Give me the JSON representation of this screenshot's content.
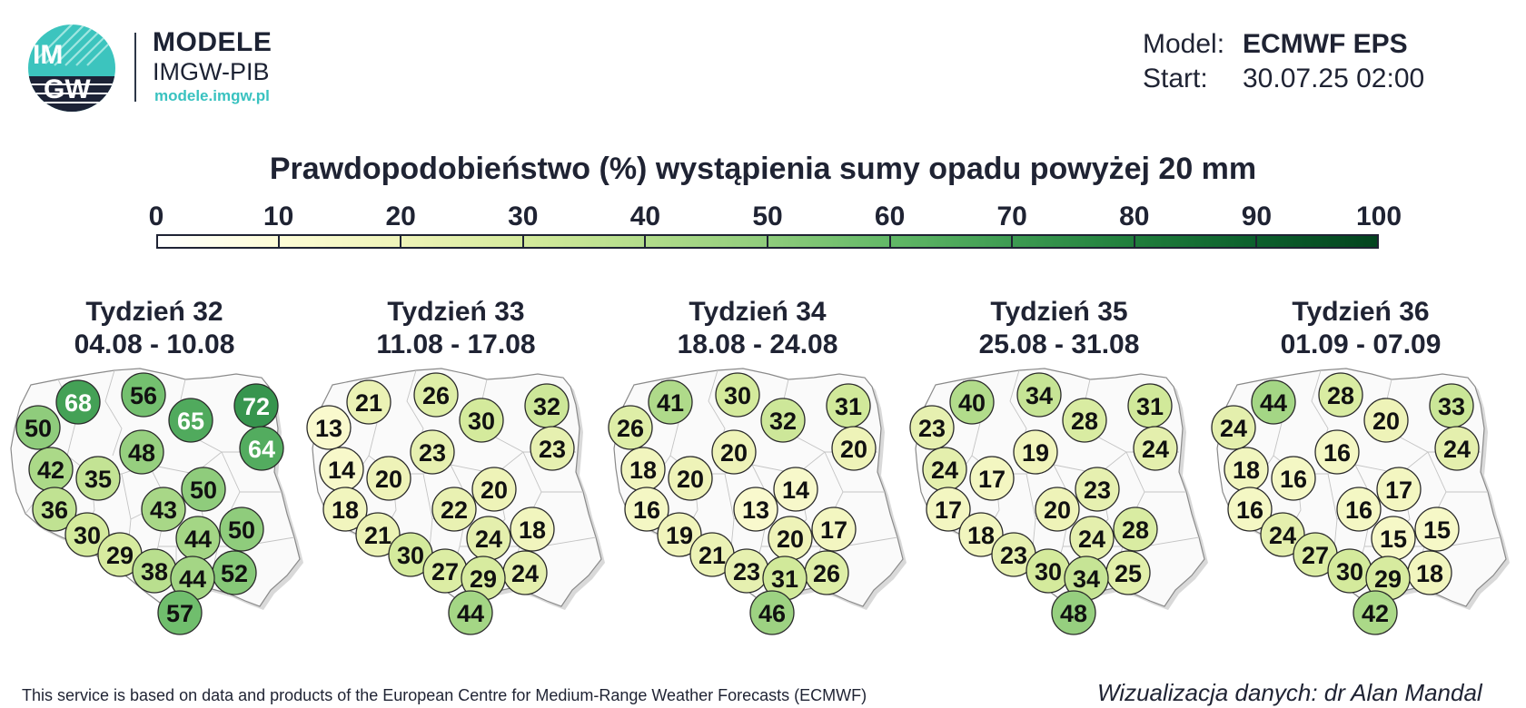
{
  "header": {
    "logo_text_top": "IM",
    "logo_text_bottom": "GW",
    "brand": "MODELE",
    "org": "IMGW-PIB",
    "url": "modele.imgw.pl"
  },
  "model_info": {
    "model_label": "Model:",
    "model_value": "ECMWF EPS",
    "start_label": "Start:",
    "start_value": "30.07.25 02:00"
  },
  "title": "Prawdopodobieństwo (%) wystąpienia sumy opadu powyżej 20 mm",
  "colorbar": {
    "ticks": [
      "0",
      "10",
      "20",
      "30",
      "40",
      "50",
      "60",
      "70",
      "80",
      "90",
      "100"
    ],
    "colors": [
      "#ffffff",
      "#fdfcd6",
      "#eef3b8",
      "#d4ea9c",
      "#b2dc8b",
      "#8fcc7c",
      "#62b867",
      "#3d9b52",
      "#1f7e3c",
      "#0c602d",
      "#03441f"
    ]
  },
  "weeks": [
    {
      "title": "Tydzień 32",
      "dates": "04.08 - 10.08",
      "stations": [
        {
          "v": 68,
          "x": 72,
          "y": 21
        },
        {
          "v": 56,
          "x": 144,
          "y": 13
        },
        {
          "v": 72,
          "x": 268,
          "y": 25
        },
        {
          "v": 50,
          "x": 28,
          "y": 49
        },
        {
          "v": 65,
          "x": 196,
          "y": 41
        },
        {
          "v": 64,
          "x": 274,
          "y": 72
        },
        {
          "v": 48,
          "x": 142,
          "y": 76
        },
        {
          "v": 42,
          "x": 42,
          "y": 95
        },
        {
          "v": 35,
          "x": 94,
          "y": 105
        },
        {
          "v": 50,
          "x": 210,
          "y": 117
        },
        {
          "v": 36,
          "x": 46,
          "y": 139
        },
        {
          "v": 43,
          "x": 166,
          "y": 139
        },
        {
          "v": 30,
          "x": 82,
          "y": 167
        },
        {
          "v": 50,
          "x": 252,
          "y": 161
        },
        {
          "v": 44,
          "x": 204,
          "y": 171
        },
        {
          "v": 29,
          "x": 118,
          "y": 189
        },
        {
          "v": 38,
          "x": 156,
          "y": 207
        },
        {
          "v": 52,
          "x": 244,
          "y": 209
        },
        {
          "v": 44,
          "x": 198,
          "y": 215
        },
        {
          "v": 57,
          "x": 184,
          "y": 253
        }
      ]
    },
    {
      "title": "Tydzień 33",
      "dates": "11.08 - 17.08",
      "stations": [
        {
          "v": 21,
          "x": 60,
          "y": 21
        },
        {
          "v": 26,
          "x": 134,
          "y": 13
        },
        {
          "v": 32,
          "x": 256,
          "y": 25
        },
        {
          "v": 13,
          "x": 16,
          "y": 49
        },
        {
          "v": 30,
          "x": 184,
          "y": 41
        },
        {
          "v": 23,
          "x": 262,
          "y": 72
        },
        {
          "v": 23,
          "x": 130,
          "y": 76
        },
        {
          "v": 14,
          "x": 30,
          "y": 95
        },
        {
          "v": 20,
          "x": 82,
          "y": 105
        },
        {
          "v": 20,
          "x": 198,
          "y": 117
        },
        {
          "v": 18,
          "x": 34,
          "y": 139
        },
        {
          "v": 22,
          "x": 154,
          "y": 139
        },
        {
          "v": 21,
          "x": 70,
          "y": 167
        },
        {
          "v": 18,
          "x": 240,
          "y": 161
        },
        {
          "v": 24,
          "x": 192,
          "y": 171
        },
        {
          "v": 30,
          "x": 106,
          "y": 189
        },
        {
          "v": 27,
          "x": 144,
          "y": 207
        },
        {
          "v": 24,
          "x": 232,
          "y": 209
        },
        {
          "v": 29,
          "x": 186,
          "y": 215
        },
        {
          "v": 44,
          "x": 172,
          "y": 253
        }
      ]
    },
    {
      "title": "Tydzień 34",
      "dates": "18.08 - 24.08",
      "stations": [
        {
          "v": 41,
          "x": 60,
          "y": 21
        },
        {
          "v": 30,
          "x": 134,
          "y": 13
        },
        {
          "v": 31,
          "x": 256,
          "y": 25
        },
        {
          "v": 26,
          "x": 16,
          "y": 49
        },
        {
          "v": 32,
          "x": 184,
          "y": 41
        },
        {
          "v": 20,
          "x": 262,
          "y": 72
        },
        {
          "v": 20,
          "x": 130,
          "y": 76
        },
        {
          "v": 18,
          "x": 30,
          "y": 95
        },
        {
          "v": 20,
          "x": 82,
          "y": 105
        },
        {
          "v": 14,
          "x": 198,
          "y": 117
        },
        {
          "v": 16,
          "x": 34,
          "y": 139
        },
        {
          "v": 13,
          "x": 154,
          "y": 139
        },
        {
          "v": 19,
          "x": 70,
          "y": 167
        },
        {
          "v": 17,
          "x": 240,
          "y": 161
        },
        {
          "v": 20,
          "x": 192,
          "y": 171
        },
        {
          "v": 21,
          "x": 106,
          "y": 189
        },
        {
          "v": 23,
          "x": 144,
          "y": 207
        },
        {
          "v": 26,
          "x": 232,
          "y": 209
        },
        {
          "v": 31,
          "x": 186,
          "y": 215
        },
        {
          "v": 46,
          "x": 172,
          "y": 253
        }
      ]
    },
    {
      "title": "Tydzień 35",
      "dates": "25.08 - 31.08",
      "stations": [
        {
          "v": 40,
          "x": 60,
          "y": 21
        },
        {
          "v": 34,
          "x": 134,
          "y": 13
        },
        {
          "v": 31,
          "x": 256,
          "y": 25
        },
        {
          "v": 23,
          "x": 16,
          "y": 49
        },
        {
          "v": 28,
          "x": 184,
          "y": 41
        },
        {
          "v": 24,
          "x": 262,
          "y": 72
        },
        {
          "v": 19,
          "x": 130,
          "y": 76
        },
        {
          "v": 24,
          "x": 30,
          "y": 95
        },
        {
          "v": 17,
          "x": 82,
          "y": 105
        },
        {
          "v": 23,
          "x": 198,
          "y": 117
        },
        {
          "v": 17,
          "x": 34,
          "y": 139
        },
        {
          "v": 20,
          "x": 154,
          "y": 139
        },
        {
          "v": 18,
          "x": 70,
          "y": 167
        },
        {
          "v": 28,
          "x": 240,
          "y": 161
        },
        {
          "v": 24,
          "x": 192,
          "y": 171
        },
        {
          "v": 23,
          "x": 106,
          "y": 189
        },
        {
          "v": 30,
          "x": 144,
          "y": 207
        },
        {
          "v": 25,
          "x": 232,
          "y": 209
        },
        {
          "v": 34,
          "x": 186,
          "y": 215
        },
        {
          "v": 48,
          "x": 172,
          "y": 253
        }
      ]
    },
    {
      "title": "Tydzień 36",
      "dates": "01.09 - 07.09",
      "stations": [
        {
          "v": 44,
          "x": 60,
          "y": 21
        },
        {
          "v": 28,
          "x": 134,
          "y": 13
        },
        {
          "v": 33,
          "x": 256,
          "y": 25
        },
        {
          "v": 24,
          "x": 16,
          "y": 49
        },
        {
          "v": 20,
          "x": 184,
          "y": 41
        },
        {
          "v": 24,
          "x": 262,
          "y": 72
        },
        {
          "v": 16,
          "x": 130,
          "y": 76
        },
        {
          "v": 18,
          "x": 30,
          "y": 95
        },
        {
          "v": 16,
          "x": 82,
          "y": 105
        },
        {
          "v": 17,
          "x": 198,
          "y": 117
        },
        {
          "v": 16,
          "x": 34,
          "y": 139
        },
        {
          "v": 16,
          "x": 154,
          "y": 139
        },
        {
          "v": 24,
          "x": 70,
          "y": 167
        },
        {
          "v": 15,
          "x": 240,
          "y": 161
        },
        {
          "v": 15,
          "x": 192,
          "y": 171
        },
        {
          "v": 27,
          "x": 106,
          "y": 189
        },
        {
          "v": 30,
          "x": 144,
          "y": 207
        },
        {
          "v": 18,
          "x": 232,
          "y": 209
        },
        {
          "v": 29,
          "x": 186,
          "y": 215
        },
        {
          "v": 42,
          "x": 172,
          "y": 253
        }
      ]
    }
  ],
  "footer": {
    "left": "This service is based on data and products of the European Centre for Medium-Range Weather Forecasts (ECMWF)",
    "right": "Wizualizacja danych: dr Alan Mandal"
  }
}
